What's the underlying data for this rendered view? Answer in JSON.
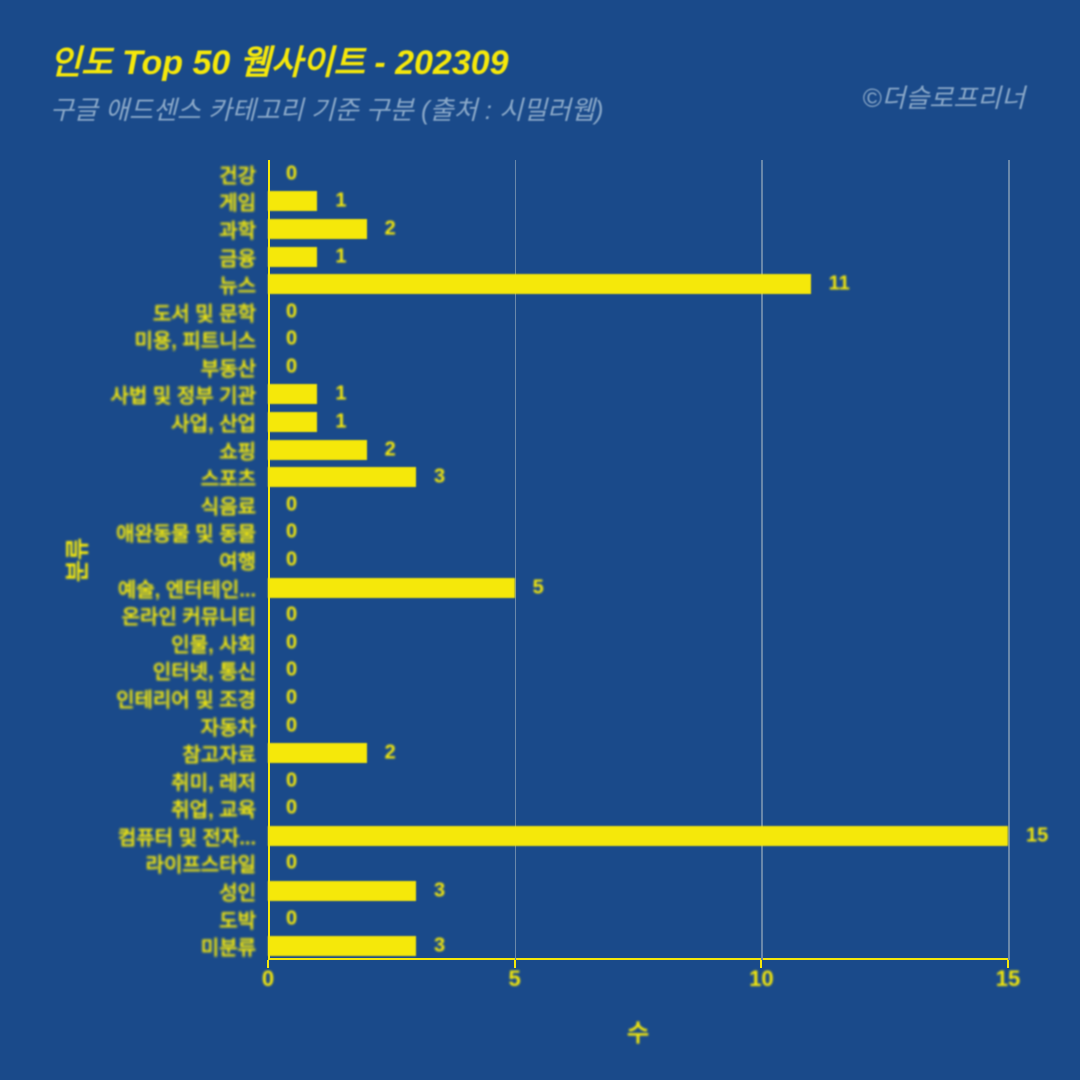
{
  "header": {
    "title": "인도 Top 50 웹사이트 - 202309",
    "subtitle": "구글 애드센스 카테고리 기준 구분 (출처 : 시밀러웹)",
    "credit": "©더슬로프리너"
  },
  "chart": {
    "type": "bar-horizontal",
    "bar_color": "#f5e80a",
    "background_color": "#1a4a8a",
    "grid_color": "#6a88aa",
    "text_color": "#f5e80a",
    "subtitle_color": "#8aa8c8",
    "title_fontsize": 34,
    "subtitle_fontsize": 26,
    "label_fontsize": 20,
    "tick_fontsize": 22,
    "axis_title_fontsize": 24,
    "x_title": "수",
    "y_title": "분류",
    "xlim": [
      0,
      15
    ],
    "xtick_step": 5,
    "xticks": [
      0,
      5,
      10,
      15
    ],
    "categories": [
      {
        "label": "건강",
        "value": 0
      },
      {
        "label": "게임",
        "value": 1
      },
      {
        "label": "과학",
        "value": 2
      },
      {
        "label": "금융",
        "value": 1
      },
      {
        "label": "뉴스",
        "value": 11
      },
      {
        "label": "도서 및 문학",
        "value": 0
      },
      {
        "label": "미용, 피트니스",
        "value": 0
      },
      {
        "label": "부동산",
        "value": 0
      },
      {
        "label": "사법 및 정부 기관",
        "value": 1
      },
      {
        "label": "사업, 산업",
        "value": 1
      },
      {
        "label": "쇼핑",
        "value": 2
      },
      {
        "label": "스포츠",
        "value": 3
      },
      {
        "label": "식음료",
        "value": 0
      },
      {
        "label": "애완동물 및 동물",
        "value": 0
      },
      {
        "label": "여행",
        "value": 0
      },
      {
        "label": "예술, 엔터테인...",
        "value": 5
      },
      {
        "label": "온라인 커뮤니티",
        "value": 0
      },
      {
        "label": "인물, 사회",
        "value": 0
      },
      {
        "label": "인터넷, 통신",
        "value": 0
      },
      {
        "label": "인테리어 및 조경",
        "value": 0
      },
      {
        "label": "자동차",
        "value": 0
      },
      {
        "label": "참고자료",
        "value": 2
      },
      {
        "label": "취미, 레저",
        "value": 0
      },
      {
        "label": "취업, 교육",
        "value": 0
      },
      {
        "label": "컴퓨터 및 전자...",
        "value": 15
      },
      {
        "label": "라이프스타일",
        "value": 0
      },
      {
        "label": "성인",
        "value": 3
      },
      {
        "label": "도박",
        "value": 0
      },
      {
        "label": "미분류",
        "value": 3
      }
    ]
  }
}
